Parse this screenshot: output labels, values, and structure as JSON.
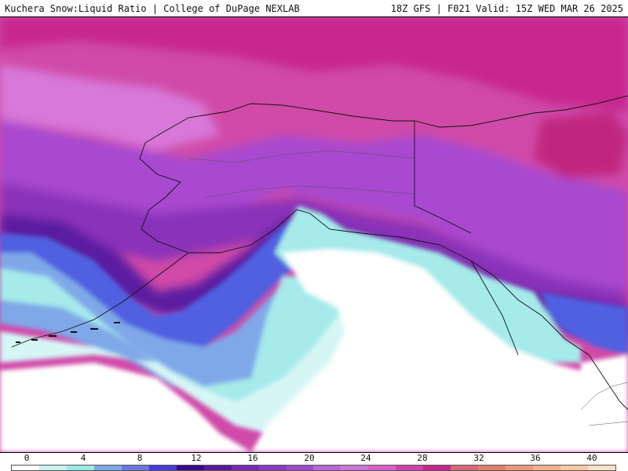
{
  "header": {
    "left": "Kuchera Snow:Liquid Ratio | College of DuPage NEXLAB",
    "right": "18Z GFS | F021 Valid: 15Z WED MAR 26 2025"
  },
  "legend": {
    "ticks": [
      "0",
      "4",
      "8",
      "12",
      "16",
      "20",
      "24",
      "28",
      "32",
      "36",
      "40"
    ],
    "colors": [
      "#ffffff",
      "#c8f2f2",
      "#9ee8e8",
      "#7fa8e8",
      "#6a78e0",
      "#4a3ad8",
      "#3a0a8a",
      "#5a1a9a",
      "#7a2ab0",
      "#8a3ac0",
      "#a04ac8",
      "#b868d0",
      "#cc78d8",
      "#d860c8",
      "#d040a8",
      "#c02888",
      "#d86878",
      "#e08070",
      "#e89880",
      "#f0b090",
      "#f8c8a8",
      "#fde0c8"
    ]
  },
  "colors": {
    "ocean_white": "#ffffff",
    "land_magenta": "#cc3aa0",
    "land_purple": "#9a40c8",
    "deep_purple": "#4a1a8a",
    "blue": "#5060e0",
    "cyan": "#a6eaea"
  }
}
